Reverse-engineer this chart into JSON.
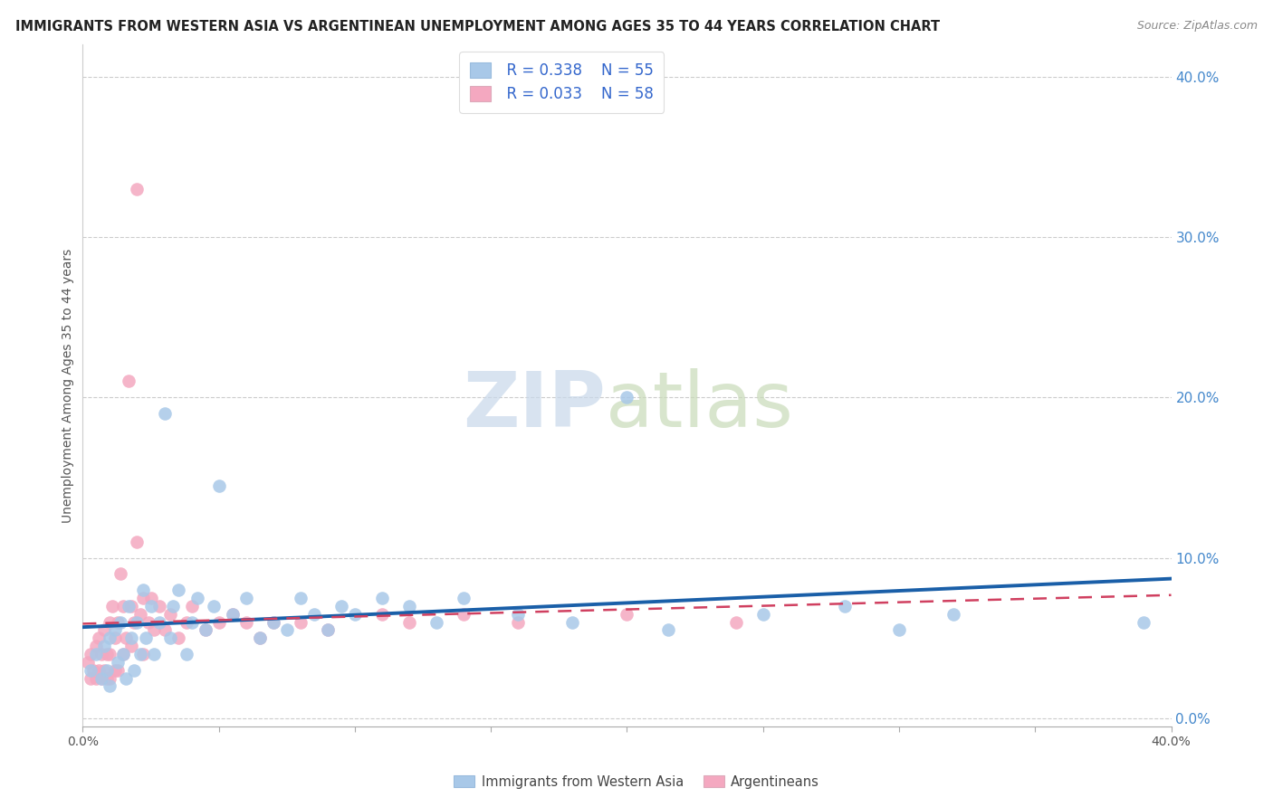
{
  "title": "IMMIGRANTS FROM WESTERN ASIA VS ARGENTINEAN UNEMPLOYMENT AMONG AGES 35 TO 44 YEARS CORRELATION CHART",
  "source": "Source: ZipAtlas.com",
  "ylabel": "Unemployment Among Ages 35 to 44 years",
  "xlim": [
    0.0,
    0.4
  ],
  "ylim": [
    -0.005,
    0.42
  ],
  "ytick_labels": [
    "0.0%",
    "10.0%",
    "20.0%",
    "30.0%",
    "40.0%"
  ],
  "ytick_vals": [
    0.0,
    0.1,
    0.2,
    0.3,
    0.4
  ],
  "xtick_vals": [
    0.0,
    0.05,
    0.1,
    0.15,
    0.2,
    0.25,
    0.3,
    0.35,
    0.4
  ],
  "xtick_labels": [
    "0.0%",
    "",
    "",
    "",
    "",
    "",
    "",
    "",
    "40.0%"
  ],
  "blue_label": "Immigrants from Western Asia",
  "pink_label": "Argentineans",
  "blue_R": "R = 0.338",
  "blue_N": "N = 55",
  "pink_R": "R = 0.033",
  "pink_N": "N = 58",
  "blue_color": "#a8c8e8",
  "pink_color": "#f4a8c0",
  "blue_line_color": "#1a5fa8",
  "pink_line_color": "#d04060",
  "background_color": "#ffffff",
  "blue_scatter_x": [
    0.003,
    0.005,
    0.007,
    0.008,
    0.009,
    0.01,
    0.01,
    0.012,
    0.013,
    0.014,
    0.015,
    0.016,
    0.017,
    0.018,
    0.019,
    0.02,
    0.021,
    0.022,
    0.023,
    0.025,
    0.026,
    0.028,
    0.03,
    0.032,
    0.033,
    0.035,
    0.038,
    0.04,
    0.042,
    0.045,
    0.048,
    0.05,
    0.055,
    0.06,
    0.065,
    0.07,
    0.075,
    0.08,
    0.085,
    0.09,
    0.095,
    0.1,
    0.11,
    0.12,
    0.13,
    0.14,
    0.16,
    0.18,
    0.2,
    0.215,
    0.25,
    0.28,
    0.3,
    0.32,
    0.39
  ],
  "blue_scatter_y": [
    0.03,
    0.04,
    0.025,
    0.045,
    0.03,
    0.05,
    0.02,
    0.055,
    0.035,
    0.06,
    0.04,
    0.025,
    0.07,
    0.05,
    0.03,
    0.06,
    0.04,
    0.08,
    0.05,
    0.07,
    0.04,
    0.06,
    0.19,
    0.05,
    0.07,
    0.08,
    0.04,
    0.06,
    0.075,
    0.055,
    0.07,
    0.145,
    0.065,
    0.075,
    0.05,
    0.06,
    0.055,
    0.075,
    0.065,
    0.055,
    0.07,
    0.065,
    0.075,
    0.07,
    0.06,
    0.075,
    0.065,
    0.06,
    0.2,
    0.055,
    0.065,
    0.07,
    0.055,
    0.065,
    0.06
  ],
  "pink_scatter_x": [
    0.002,
    0.003,
    0.003,
    0.004,
    0.005,
    0.005,
    0.006,
    0.006,
    0.007,
    0.007,
    0.008,
    0.008,
    0.009,
    0.009,
    0.01,
    0.01,
    0.01,
    0.011,
    0.012,
    0.012,
    0.013,
    0.013,
    0.014,
    0.015,
    0.015,
    0.016,
    0.017,
    0.018,
    0.018,
    0.019,
    0.02,
    0.02,
    0.021,
    0.022,
    0.022,
    0.024,
    0.025,
    0.026,
    0.028,
    0.03,
    0.032,
    0.035,
    0.038,
    0.04,
    0.045,
    0.05,
    0.055,
    0.06,
    0.065,
    0.07,
    0.08,
    0.09,
    0.11,
    0.12,
    0.14,
    0.16,
    0.2,
    0.24
  ],
  "pink_scatter_y": [
    0.035,
    0.025,
    0.04,
    0.03,
    0.045,
    0.025,
    0.05,
    0.03,
    0.04,
    0.025,
    0.055,
    0.03,
    0.04,
    0.025,
    0.06,
    0.04,
    0.025,
    0.07,
    0.05,
    0.03,
    0.06,
    0.03,
    0.09,
    0.07,
    0.04,
    0.05,
    0.21,
    0.07,
    0.045,
    0.06,
    0.33,
    0.11,
    0.065,
    0.075,
    0.04,
    0.06,
    0.075,
    0.055,
    0.07,
    0.055,
    0.065,
    0.05,
    0.06,
    0.07,
    0.055,
    0.06,
    0.065,
    0.06,
    0.05,
    0.06,
    0.06,
    0.055,
    0.065,
    0.06,
    0.065,
    0.06,
    0.065,
    0.06
  ]
}
